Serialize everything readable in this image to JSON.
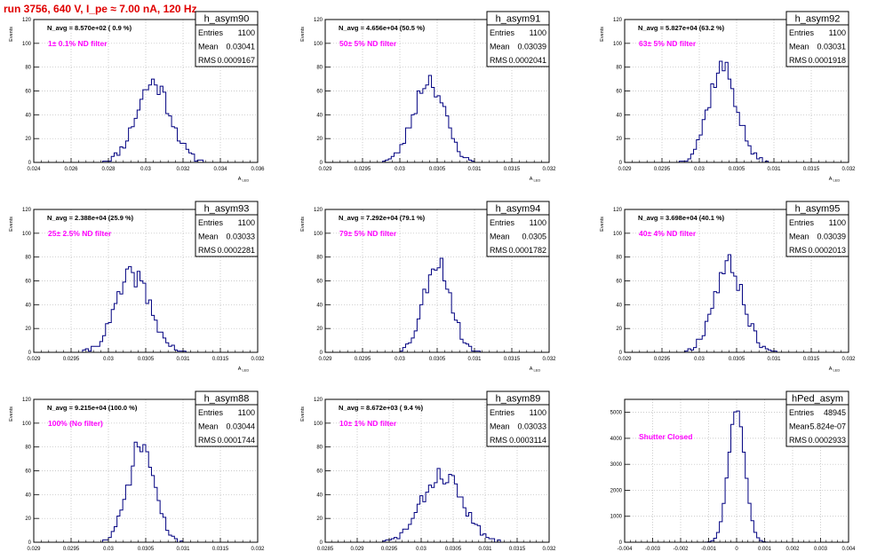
{
  "header": {
    "run_title": "run 3756,   640 V, I_pe ≈ 7.00 nA, 120 Hz"
  },
  "colors": {
    "histogram": "#000080",
    "annotation": "#ff00ff",
    "title": "#e00000",
    "axis": "#000000",
    "grid": "#b8b8b8"
  },
  "chart_data": [
    {
      "type": "bar",
      "name": "h_asym90",
      "navg": "N_avg = 8.570e+02 ( 0.9 %)",
      "filter": "1± 0.1% ND filter",
      "stats": {
        "Entries": "1100",
        "Mean": "0.03041",
        "RMS": "0.0009167"
      },
      "ylabel": "Events",
      "xlabel": "A_LED",
      "xlim": [
        0.024,
        0.036
      ],
      "ylim": [
        0,
        120
      ],
      "xticks": [
        "0.024",
        "0.026",
        "0.028",
        "0.03",
        "0.032",
        "0.034",
        "0.036"
      ],
      "yticks": [
        "0",
        "20",
        "40",
        "60",
        "80",
        "100",
        "120"
      ],
      "mean": 0.03041,
      "sigma": 0.0009167,
      "peak": 67,
      "bins": 78,
      "seed": 11,
      "grid": true
    },
    {
      "type": "bar",
      "name": "h_asym91",
      "navg": "N_avg = 4.656e+04 (50.5 %)",
      "filter": "50± 5% ND filter",
      "stats": {
        "Entries": "1100",
        "Mean": "0.03039",
        "RMS": "0.0002041"
      },
      "ylabel": "Events",
      "xlabel": "A_LED",
      "xlim": [
        0.029,
        0.032
      ],
      "ylim": [
        0,
        120
      ],
      "xticks": [
        "0.029",
        "0.0295",
        "0.03",
        "0.0305",
        "0.031",
        "0.0315",
        "0.032"
      ],
      "yticks": [
        "0",
        "20",
        "40",
        "60",
        "80",
        "100",
        "120"
      ],
      "mean": 0.03039,
      "sigma": 0.0002041,
      "peak": 70,
      "bins": 78,
      "seed": 23,
      "grid": true
    },
    {
      "type": "bar",
      "name": "h_asym92",
      "navg": "N_avg = 5.827e+04 (63.2 %)",
      "filter": "63± 5% ND filter",
      "stats": {
        "Entries": "1100",
        "Mean": "0.03031",
        "RMS": "0.0001918"
      },
      "ylabel": "Events",
      "xlabel": "A_LED",
      "xlim": [
        0.029,
        0.032
      ],
      "ylim": [
        0,
        120
      ],
      "xticks": [
        "0.029",
        "0.0295",
        "0.03",
        "0.0305",
        "0.031",
        "0.0315",
        "0.032"
      ],
      "yticks": [
        "0",
        "20",
        "40",
        "60",
        "80",
        "100",
        "120"
      ],
      "mean": 0.03031,
      "sigma": 0.0001918,
      "peak": 80,
      "bins": 78,
      "seed": 37,
      "grid": true
    },
    {
      "type": "bar",
      "name": "h_asym93",
      "navg": "N_avg = 2.388e+04 (25.9 %)",
      "filter": "25± 2.5% ND filter",
      "stats": {
        "Entries": "1100",
        "Mean": "0.03033",
        "RMS": "0.0002281"
      },
      "ylabel": "Events",
      "xlabel": "A_LED",
      "xlim": [
        0.029,
        0.032
      ],
      "ylim": [
        0,
        120
      ],
      "xticks": [
        "0.029",
        "0.0295",
        "0.03",
        "0.0305",
        "0.031",
        "0.0315",
        "0.032"
      ],
      "yticks": [
        "0",
        "20",
        "40",
        "60",
        "80",
        "100",
        "120"
      ],
      "mean": 0.03033,
      "sigma": 0.0002281,
      "peak": 65,
      "bins": 78,
      "seed": 41,
      "grid": true
    },
    {
      "type": "bar",
      "name": "h_asym94",
      "navg": "N_avg = 7.292e+04 (79.1 %)",
      "filter": "79± 5% ND filter",
      "stats": {
        "Entries": "1100",
        "Mean": "0.0305",
        "RMS": "0.0001782"
      },
      "ylabel": "Events",
      "xlabel": "A_LED",
      "xlim": [
        0.029,
        0.032
      ],
      "ylim": [
        0,
        120
      ],
      "xticks": [
        "0.029",
        "0.0295",
        "0.03",
        "0.0305",
        "0.031",
        "0.0315",
        "0.032"
      ],
      "yticks": [
        "0",
        "20",
        "40",
        "60",
        "80",
        "100",
        "120"
      ],
      "mean": 0.0305,
      "sigma": 0.0001782,
      "peak": 77,
      "bins": 78,
      "seed": 53,
      "grid": true
    },
    {
      "type": "bar",
      "name": "h_asym95",
      "navg": "N_avg = 3.698e+04 (40.1 %)",
      "filter": "40± 4% ND filter",
      "stats": {
        "Entries": "1100",
        "Mean": "0.03039",
        "RMS": "0.0002013"
      },
      "ylabel": "Events",
      "xlabel": "A_LED",
      "xlim": [
        0.029,
        0.032
      ],
      "ylim": [
        0,
        120
      ],
      "xticks": [
        "0.029",
        "0.0295",
        "0.03",
        "0.0305",
        "0.031",
        "0.0315",
        "0.032"
      ],
      "yticks": [
        "0",
        "20",
        "40",
        "60",
        "80",
        "100",
        "120"
      ],
      "mean": 0.03039,
      "sigma": 0.0002013,
      "peak": 73,
      "bins": 78,
      "seed": 67,
      "grid": true
    },
    {
      "type": "bar",
      "name": "h_asym88",
      "navg": "N_avg = 9.215e+04 (100.0 %)",
      "filter": "100% (No filter)",
      "stats": {
        "Entries": "1100",
        "Mean": "0.03044",
        "RMS": "0.0001744"
      },
      "ylabel": "Events",
      "xlabel": "A_LED",
      "xlim": [
        0.029,
        0.032
      ],
      "ylim": [
        0,
        120
      ],
      "xticks": [
        "0.029",
        "0.0295",
        "0.03",
        "0.0305",
        "0.031",
        "0.0315",
        "0.032"
      ],
      "yticks": [
        "0",
        "20",
        "40",
        "60",
        "80",
        "100",
        "120"
      ],
      "mean": 0.03044,
      "sigma": 0.0001744,
      "peak": 82,
      "bins": 78,
      "seed": 71,
      "grid": true
    },
    {
      "type": "bar",
      "name": "h_asym89",
      "navg": "N_avg = 8.672e+03 ( 9.4 %)",
      "filter": "10± 1% ND filter",
      "stats": {
        "Entries": "1100",
        "Mean": "0.03033",
        "RMS": "0.0003114"
      },
      "ylabel": "Events",
      "xlabel": "A_LED",
      "xlim": [
        0.0285,
        0.032
      ],
      "ylim": [
        0,
        120
      ],
      "xticks": [
        "0.0285",
        "0.029",
        "0.0295",
        "0.03",
        "0.0305",
        "0.031",
        "0.0315",
        "0.032"
      ],
      "yticks": [
        "0",
        "20",
        "40",
        "60",
        "80",
        "100",
        "120"
      ],
      "mean": 0.03033,
      "sigma": 0.0003114,
      "peak": 57,
      "bins": 78,
      "seed": 83,
      "grid": true
    },
    {
      "type": "bar",
      "name": "hPed_asym",
      "navg": "",
      "filter": "Shutter Closed",
      "stats": {
        "Entries": "48945",
        "Mean": "-5.824e-07",
        "RMS": "0.0002933"
      },
      "ylabel": "",
      "xlabel": "",
      "xlim": [
        -0.004,
        0.004
      ],
      "ylim": [
        0,
        5500
      ],
      "xticks": [
        "-0.004",
        "-0.003",
        "-0.002",
        "-0.001",
        "0",
        "0.001",
        "0.002",
        "0.003",
        "0.004"
      ],
      "yticks": [
        "0",
        "1000",
        "2000",
        "3000",
        "4000",
        "5000"
      ],
      "mean": 0.0,
      "sigma": 0.0002933,
      "peak": 5150,
      "bins": 78,
      "seed": 97,
      "grid": true
    }
  ]
}
